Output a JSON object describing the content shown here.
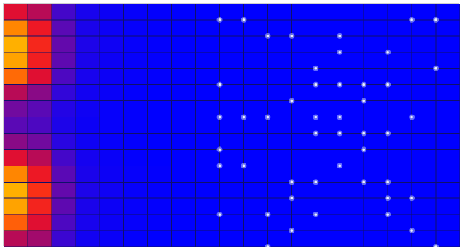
{
  "chart_data": {
    "type": "heatmap",
    "title": "",
    "xlabel": "",
    "ylabel": "",
    "rows": 15,
    "cols": 19,
    "colorscale": [
      "#0000ff",
      "#2a05e0",
      "#6a0aa6",
      "#b00a5e",
      "#e8102a",
      "#ff3a10",
      "#ff8a00",
      "#ffb000"
    ],
    "values": [
      [
        0.55,
        0.45,
        0.2,
        0.08,
        0.04,
        0.02,
        0.01,
        0,
        0,
        0,
        0,
        0,
        0,
        0,
        0,
        0,
        0,
        0,
        0
      ],
      [
        0.85,
        0.6,
        0.25,
        0.09,
        0.04,
        0.02,
        0.01,
        0,
        0,
        0,
        0,
        0,
        0,
        0,
        0,
        0,
        0,
        0,
        0
      ],
      [
        1.0,
        0.65,
        0.27,
        0.1,
        0.05,
        0.02,
        0.01,
        0,
        0,
        0,
        0,
        0,
        0,
        0,
        0,
        0,
        0,
        0,
        0
      ],
      [
        0.95,
        0.62,
        0.26,
        0.09,
        0.04,
        0.02,
        0.01,
        0,
        0,
        0,
        0,
        0,
        0,
        0,
        0,
        0,
        0,
        0,
        0
      ],
      [
        0.8,
        0.55,
        0.22,
        0.08,
        0.04,
        0.02,
        0.01,
        0,
        0,
        0,
        0,
        0,
        0,
        0,
        0,
        0,
        0,
        0,
        0
      ],
      [
        0.45,
        0.35,
        0.16,
        0.06,
        0.03,
        0.01,
        0,
        0,
        0,
        0,
        0,
        0,
        0,
        0,
        0,
        0,
        0,
        0,
        0
      ],
      [
        0.3,
        0.25,
        0.12,
        0.05,
        0.02,
        0.01,
        0,
        0,
        0,
        0,
        0,
        0,
        0,
        0,
        0,
        0,
        0,
        0,
        0
      ],
      [
        0.25,
        0.22,
        0.1,
        0.04,
        0.02,
        0.01,
        0,
        0,
        0,
        0,
        0,
        0,
        0,
        0,
        0,
        0,
        0,
        0,
        0
      ],
      [
        0.35,
        0.3,
        0.14,
        0.05,
        0.02,
        0.01,
        0,
        0,
        0,
        0,
        0,
        0,
        0,
        0,
        0,
        0,
        0,
        0,
        0
      ],
      [
        0.55,
        0.45,
        0.2,
        0.07,
        0.03,
        0.01,
        0,
        0,
        0,
        0,
        0,
        0,
        0,
        0,
        0,
        0,
        0,
        0,
        0
      ],
      [
        0.85,
        0.6,
        0.25,
        0.09,
        0.04,
        0.02,
        0.01,
        0,
        0,
        0,
        0,
        0,
        0,
        0,
        0,
        0,
        0,
        0,
        0
      ],
      [
        1.0,
        0.68,
        0.27,
        0.1,
        0.05,
        0.02,
        0.01,
        0,
        0,
        0,
        0,
        0,
        0,
        0,
        0,
        0,
        0,
        0,
        0
      ],
      [
        0.95,
        0.64,
        0.26,
        0.09,
        0.04,
        0.02,
        0.01,
        0,
        0,
        0,
        0,
        0,
        0,
        0,
        0,
        0,
        0,
        0,
        0
      ],
      [
        0.78,
        0.55,
        0.22,
        0.08,
        0.04,
        0.02,
        0.01,
        0,
        0,
        0,
        0,
        0,
        0,
        0,
        0,
        0,
        0,
        0,
        0
      ],
      [
        0.45,
        0.4,
        0.18,
        0.06,
        0.03,
        0.01,
        0,
        0,
        0,
        0,
        0,
        0,
        0,
        0,
        0,
        0,
        0,
        0,
        0
      ]
    ],
    "markers": [
      [
        1,
        9
      ],
      [
        1,
        10
      ],
      [
        1,
        17
      ],
      [
        1,
        18
      ],
      [
        2,
        11
      ],
      [
        2,
        12
      ],
      [
        2,
        14
      ],
      [
        3,
        14
      ],
      [
        3,
        16
      ],
      [
        4,
        13
      ],
      [
        4,
        18
      ],
      [
        5,
        9
      ],
      [
        5,
        13
      ],
      [
        5,
        14
      ],
      [
        5,
        15
      ],
      [
        5,
        16
      ],
      [
        6,
        12
      ],
      [
        6,
        15
      ],
      [
        7,
        9
      ],
      [
        7,
        10
      ],
      [
        7,
        11
      ],
      [
        7,
        13
      ],
      [
        7,
        14
      ],
      [
        7,
        17
      ],
      [
        8,
        13
      ],
      [
        8,
        14
      ],
      [
        8,
        15
      ],
      [
        8,
        16
      ],
      [
        9,
        9
      ],
      [
        9,
        15
      ],
      [
        10,
        9
      ],
      [
        10,
        10
      ],
      [
        10,
        14
      ],
      [
        11,
        12
      ],
      [
        11,
        13
      ],
      [
        11,
        15
      ],
      [
        11,
        16
      ],
      [
        12,
        12
      ],
      [
        12,
        16
      ],
      [
        12,
        17
      ],
      [
        13,
        9
      ],
      [
        13,
        11
      ],
      [
        13,
        13
      ],
      [
        13,
        16
      ],
      [
        14,
        12
      ],
      [
        14,
        17
      ],
      [
        15,
        11
      ],
      [
        15,
        18
      ]
    ],
    "grid": true,
    "legend": "none"
  }
}
